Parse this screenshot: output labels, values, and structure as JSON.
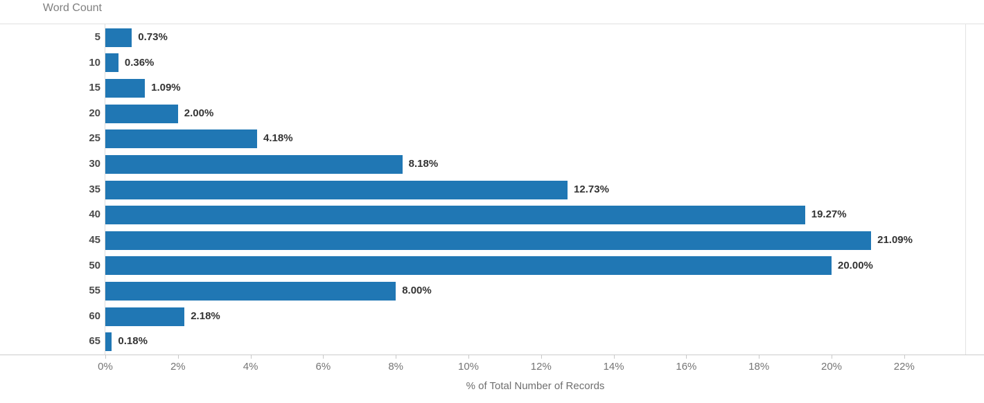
{
  "chart_data": {
    "type": "bar",
    "orientation": "horizontal",
    "category_axis_label": "Word Count",
    "xlabel": "% of Total Number of Records",
    "categories": [
      "5",
      "10",
      "15",
      "20",
      "25",
      "30",
      "35",
      "40",
      "45",
      "50",
      "55",
      "60",
      "65"
    ],
    "values": [
      0.73,
      0.36,
      1.09,
      2.0,
      4.18,
      8.18,
      12.73,
      19.27,
      21.09,
      20.0,
      8.0,
      2.18,
      0.18
    ],
    "value_labels": [
      "0.73%",
      "0.36%",
      "1.09%",
      "2.00%",
      "4.18%",
      "8.18%",
      "12.73%",
      "19.27%",
      "21.09%",
      "20.00%",
      "8.00%",
      "2.18%",
      "0.18%"
    ],
    "x_tick_values": [
      0,
      2,
      4,
      6,
      8,
      10,
      12,
      14,
      16,
      18,
      20,
      22
    ],
    "x_tick_labels": [
      "0%",
      "2%",
      "4%",
      "6%",
      "8%",
      "10%",
      "12%",
      "14%",
      "16%",
      "18%",
      "20%",
      "22%"
    ],
    "xlim": [
      0,
      23.68
    ],
    "grid": false,
    "legend": "none",
    "value_label_position": "outside-end",
    "colors": {
      "bar": "#2077B4",
      "field_label_text": "#7F7F7F",
      "row_label_text": "#4A4A4A",
      "value_label_text": "#333333",
      "tick_label_text": "#757575",
      "axis_title_text": "#6E6E6E",
      "top_border": "#E0E0E0",
      "axis_line": "#CCCCCC",
      "right_border": "#E3E3E3",
      "zero_line": "#DCDCDC",
      "tick_mark": "#C8C8C8"
    }
  }
}
